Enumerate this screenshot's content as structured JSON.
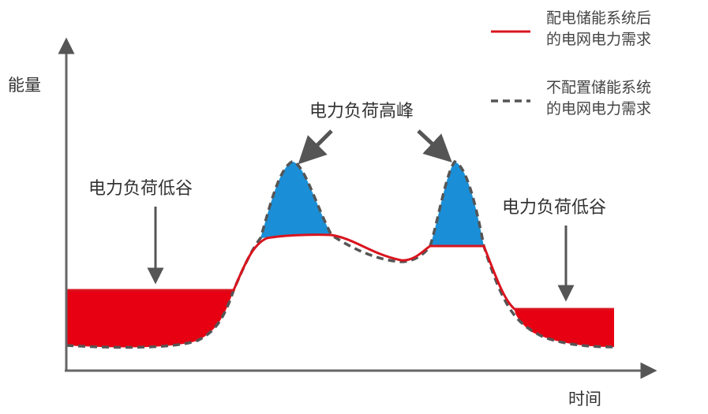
{
  "axes": {
    "y_label": "能量",
    "x_label": "时间"
  },
  "annotations": {
    "peak": "电力负荷高峰",
    "valley_left": "电力负荷低谷",
    "valley_right": "电力负荷低谷"
  },
  "legend": {
    "with_storage": {
      "line1": "配电储能系统后",
      "line2": "的电网电力需求",
      "color": "#d9141e",
      "style": "solid"
    },
    "without_storage": {
      "line1": "不配置储能系统",
      "line2": "的电网电力需求",
      "color": "#555555",
      "style": "dashed"
    }
  },
  "colors": {
    "valley_fill": "#e60012",
    "peak_fill": "#1a8fd8",
    "axis": "#666666",
    "arrow": "#555555"
  }
}
